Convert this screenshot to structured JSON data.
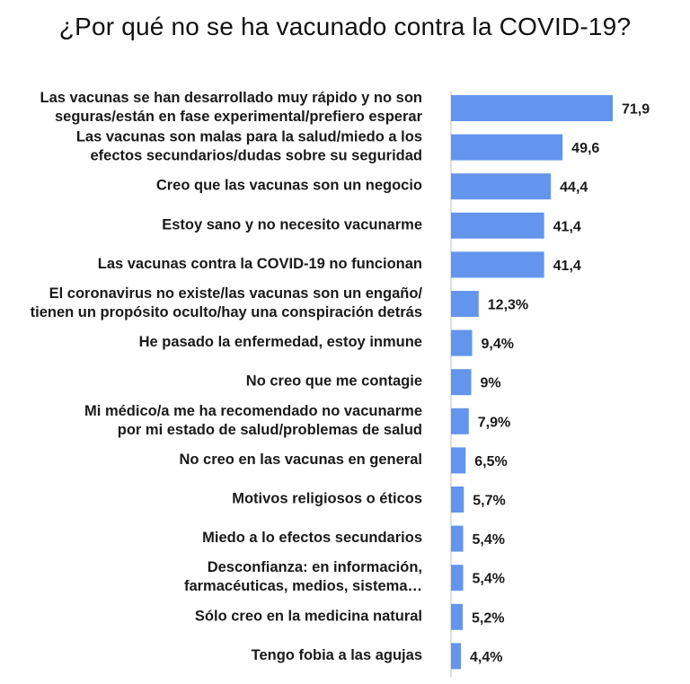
{
  "chart_data": {
    "type": "bar",
    "orientation": "horizontal",
    "title": "¿Por qué no se ha vacunado contra la COVID-19?",
    "bar_color": "#6495ed",
    "categories": [
      [
        "Las vacunas se han desarrollado muy rápido y no son",
        "seguras/están en fase experimental/prefiero esperar"
      ],
      [
        "Las vacunas son malas para la salud/miedo a los",
        "efectos secundarios/dudas sobre su seguridad"
      ],
      [
        "Creo que las vacunas son un negocio"
      ],
      [
        "Estoy sano y no necesito vacunarme"
      ],
      [
        "Las vacunas contra la COVID-19 no funcionan"
      ],
      [
        "El coronavirus no existe/las vacunas son un engaño/",
        "tienen un propósito oculto/hay una conspiración detrás"
      ],
      [
        "He pasado la enfermedad, estoy inmune"
      ],
      [
        "No creo que me contagie"
      ],
      [
        "Mi médico/a me ha recomendado no vacunarme",
        "por mi estado de salud/problemas de salud"
      ],
      [
        "No creo en las vacunas en general"
      ],
      [
        "Motivos religiosos o éticos"
      ],
      [
        "Miedo a lo efectos secundarios"
      ],
      [
        "Desconfianza: en información,",
        "farmacéuticas, medios, sistema…"
      ],
      [
        "Sólo creo en la medicina natural"
      ],
      [
        "Tengo fobia a las agujas"
      ]
    ],
    "values": [
      71.9,
      49.6,
      44.4,
      41.4,
      41.4,
      12.3,
      9.4,
      9,
      7.9,
      6.5,
      5.7,
      5.4,
      5.4,
      5.2,
      4.4
    ],
    "value_labels": [
      "71,9",
      "49,6",
      "44,4",
      "41,4",
      "41,4",
      "12,3%",
      "9,4%",
      "9%",
      "7,9%",
      "6,5%",
      "5,7%",
      "5,4%",
      "5,4%",
      "5,2%",
      "4,4%"
    ],
    "xlim": [
      0,
      75
    ],
    "grid": false,
    "legend": "none"
  }
}
